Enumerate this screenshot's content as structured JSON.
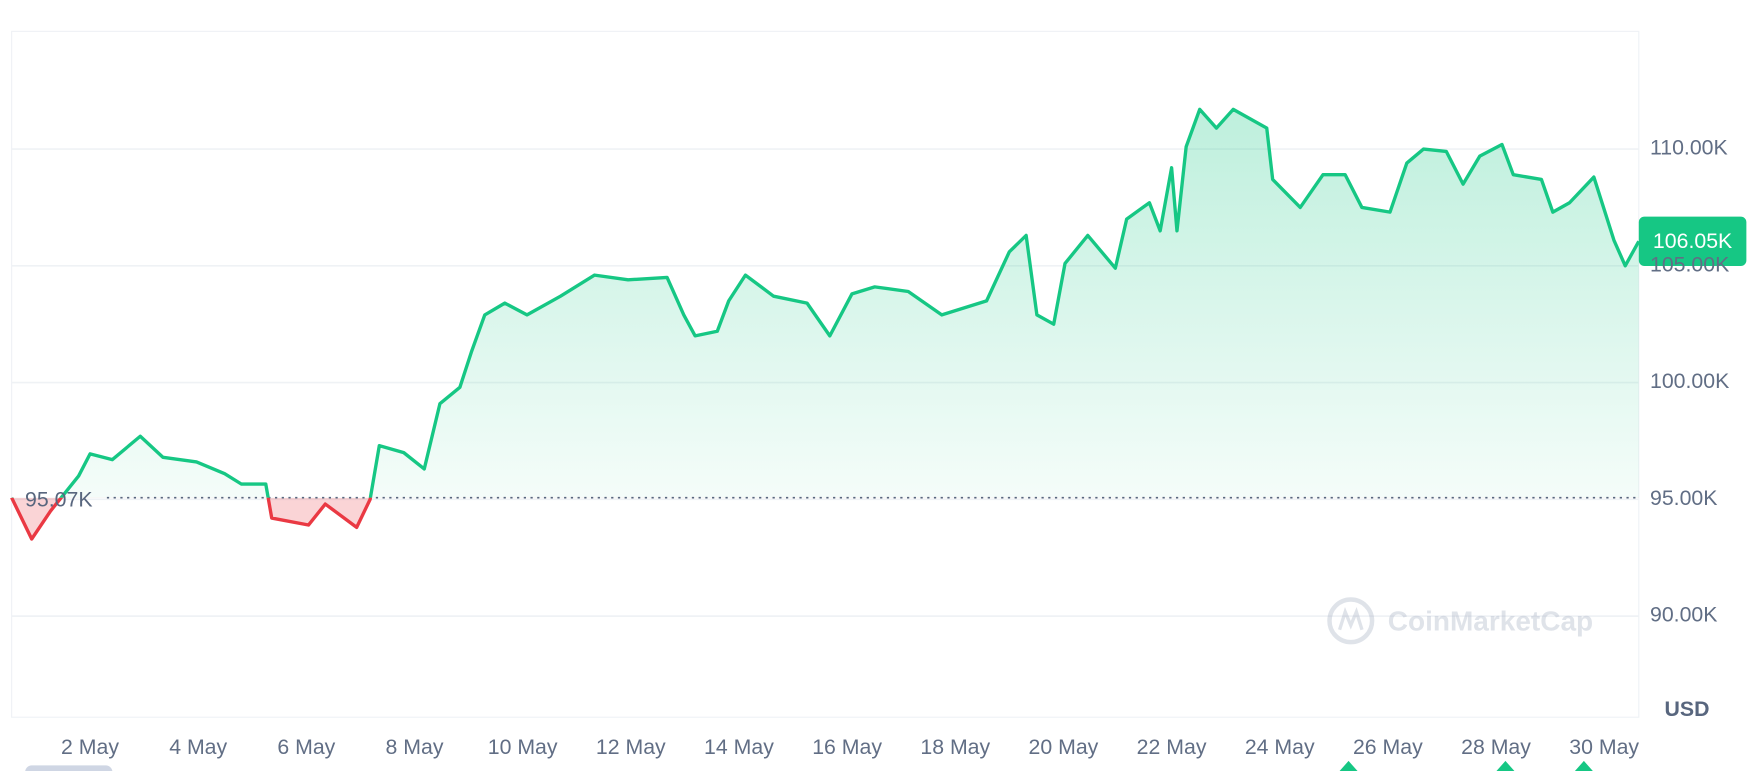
{
  "chart_data": {
    "type": "line",
    "x": [
      0.55,
      0.92,
      1.27,
      1.79,
      2.0,
      2.41,
      2.93,
      3.35,
      3.97,
      4.49,
      4.8,
      5.25,
      5.36,
      6.04,
      6.35,
      6.93,
      7.18,
      7.35,
      7.8,
      8.18,
      8.47,
      8.84,
      9.05,
      9.3,
      9.67,
      10.08,
      10.7,
      11.33,
      11.95,
      12.67,
      12.98,
      13.19,
      13.6,
      13.81,
      14.12,
      14.64,
      15.26,
      15.68,
      16.09,
      16.51,
      17.13,
      17.75,
      18.58,
      19.0,
      19.31,
      19.51,
      19.82,
      20.03,
      20.45,
      20.96,
      21.17,
      21.59,
      21.79,
      22.0,
      22.1,
      22.27,
      22.52,
      22.83,
      23.14,
      23.76,
      23.87,
      24.38,
      24.8,
      25.21,
      25.52,
      26.04,
      26.35,
      26.66,
      27.08,
      27.39,
      27.7,
      28.11,
      28.32,
      28.84,
      29.05,
      29.36,
      29.81,
      30.18,
      30.39,
      30.64
    ],
    "series": [
      {
        "name": "USD",
        "color": "#16c784",
        "values": [
          95070,
          93300,
          94500,
          96000,
          96950,
          96700,
          97700,
          96800,
          96600,
          96100,
          95650,
          95650,
          94200,
          93900,
          94800,
          93800,
          95000,
          97300,
          97000,
          96300,
          99100,
          99800,
          101300,
          102900,
          103400,
          102900,
          103700,
          104600,
          104400,
          104500,
          102900,
          102000,
          102200,
          103500,
          104600,
          103700,
          103400,
          102000,
          103800,
          104100,
          103900,
          102900,
          103500,
          105600,
          106300,
          102900,
          102500,
          105100,
          106300,
          104900,
          107000,
          107700,
          106500,
          109200,
          106500,
          110100,
          111700,
          110900,
          111700,
          110900,
          108700,
          107500,
          108900,
          108900,
          107500,
          107300,
          109400,
          110000,
          109900,
          108500,
          109700,
          110200,
          108900,
          108700,
          107300,
          107700,
          108800,
          106100,
          105000,
          106050
        ]
      }
    ],
    "down_color": "#ea3943",
    "xlim": [
      0.55,
      30.64
    ],
    "ylim": [
      85670,
      115040
    ],
    "xticks": [
      {
        "value": 2,
        "label": "2 May"
      },
      {
        "value": 4,
        "label": "4 May"
      },
      {
        "value": 6,
        "label": "6 May"
      },
      {
        "value": 8,
        "label": "8 May"
      },
      {
        "value": 10,
        "label": "10 May"
      },
      {
        "value": 12,
        "label": "12 May"
      },
      {
        "value": 14,
        "label": "14 May"
      },
      {
        "value": 16,
        "label": "16 May"
      },
      {
        "value": 18,
        "label": "18 May"
      },
      {
        "value": 20,
        "label": "20 May"
      },
      {
        "value": 22,
        "label": "22 May"
      },
      {
        "value": 24,
        "label": "24 May"
      },
      {
        "value": 26,
        "label": "26 May"
      },
      {
        "value": 28,
        "label": "28 May"
      },
      {
        "value": 30,
        "label": "30 May"
      }
    ],
    "yticks": [
      {
        "value": 90000,
        "label": "90.00K"
      },
      {
        "value": 95000,
        "label": "95.00K"
      },
      {
        "value": 100000,
        "label": "100.00K"
      },
      {
        "value": 105000,
        "label": "105.00K"
      },
      {
        "value": 110000,
        "label": "110.00K"
      }
    ],
    "grid": true,
    "baseline": {
      "value": 95070,
      "label": "95.07K"
    },
    "current": {
      "value": 106050,
      "label": "106.05K"
    },
    "currency": "USD",
    "watermark": "CoinMarketCap"
  }
}
